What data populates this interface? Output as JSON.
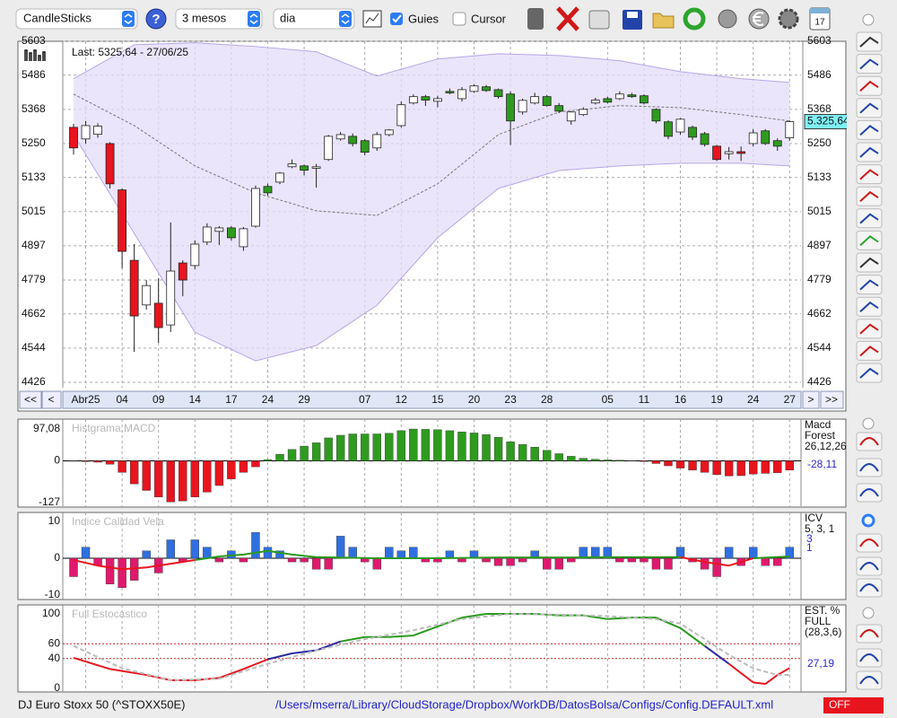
{
  "toolbar": {
    "chart_type": "CandleSticks",
    "help": "?",
    "period": "3 mesos",
    "interval": "dia",
    "guides": "Guies",
    "cursor": "Cursor",
    "calendar_day": 17
  },
  "chart_data": [
    {
      "type": "candlestick",
      "last_text": "Last: 5325,64 - 27/06/25",
      "last_tag": "5.325,64",
      "nav": {
        "first": "<<",
        "prev": "<",
        "next": ">",
        "last": ">>"
      },
      "categories": [
        null,
        "Abr25",
        null,
        null,
        "04",
        null,
        null,
        "09",
        null,
        null,
        "14",
        null,
        null,
        "17",
        null,
        null,
        "24",
        null,
        null,
        "29",
        null,
        null,
        null,
        null,
        "07",
        null,
        null,
        "12",
        null,
        null,
        "15",
        null,
        null,
        "20",
        null,
        null,
        "23",
        null,
        null,
        "28",
        null,
        null,
        null,
        null,
        "05",
        null,
        null,
        "11",
        null,
        null,
        "16",
        null,
        null,
        "19",
        null,
        null,
        "24",
        null,
        null,
        "27"
      ],
      "open": [
        5306,
        5266,
        5282,
        5250,
        5090,
        4847,
        4693,
        4699,
        4624,
        4838,
        4829,
        4910,
        4947,
        4959,
        4894,
        4965,
        5102,
        5117,
        5170,
        5173,
        5165,
        5195,
        5266,
        5275,
        5260,
        5235,
        5281,
        5312,
        5390,
        5412,
        5396,
        5430,
        5405,
        5430,
        5446,
        5436,
        5421,
        5359,
        5390,
        5412,
        5381,
        5328,
        5350,
        5390,
        5405,
        5405,
        5418,
        5415,
        5368,
        5325,
        5290,
        5306,
        5284,
        5241,
        5215,
        5222,
        5250,
        5294,
        5260,
        5270
      ],
      "high": [
        5318,
        5328,
        5320,
        5255,
        5095,
        4903,
        4779,
        4785,
        4978,
        4847,
        4916,
        4975,
        4965,
        4965,
        4962,
        5105,
        5112,
        5152,
        5195,
        5178,
        5180,
        5280,
        5290,
        5285,
        5265,
        5290,
        5300,
        5395,
        5420,
        5418,
        5415,
        5440,
        5445,
        5455,
        5452,
        5440,
        5430,
        5405,
        5425,
        5418,
        5390,
        5362,
        5375,
        5408,
        5412,
        5430,
        5425,
        5420,
        5372,
        5330,
        5338,
        5312,
        5290,
        5245,
        5238,
        5240,
        5300,
        5300,
        5268,
        5330
      ],
      "low": [
        5212,
        5250,
        5270,
        5095,
        4820,
        4531,
        4677,
        4562,
        4600,
        4723,
        4816,
        4900,
        4900,
        4915,
        4880,
        4960,
        5070,
        5110,
        5165,
        5140,
        5098,
        5190,
        5260,
        5240,
        5210,
        5225,
        5275,
        5305,
        5385,
        5380,
        5375,
        5420,
        5395,
        5425,
        5428,
        5405,
        5245,
        5350,
        5385,
        5378,
        5355,
        5315,
        5345,
        5385,
        5388,
        5400,
        5408,
        5385,
        5320,
        5265,
        5280,
        5262,
        5240,
        5190,
        5195,
        5190,
        5240,
        5245,
        5225,
        5260
      ],
      "close": [
        5235,
        5312,
        5310,
        5111,
        4878,
        4655,
        4760,
        4615,
        4810,
        4779,
        4903,
        4962,
        4959,
        4925,
        4956,
        5095,
        5080,
        5148,
        5180,
        5158,
        5170,
        5275,
        5281,
        5250,
        5220,
        5281,
        5297,
        5384,
        5412,
        5400,
        5405,
        5425,
        5436,
        5449,
        5433,
        5412,
        5328,
        5399,
        5412,
        5381,
        5362,
        5359,
        5368,
        5400,
        5393,
        5421,
        5412,
        5390,
        5328,
        5275,
        5334,
        5272,
        5247,
        5195,
        5222,
        5216,
        5287,
        5250,
        5241,
        5325.64
      ],
      "colors": [
        "#e8141e",
        "#ffffff",
        "#ffffff",
        "#e8141e",
        "#e8141e",
        "#e8141e",
        "#ffffff",
        "#e8141e",
        "#ffffff",
        "#e8141e",
        "#ffffff",
        "#ffffff",
        "#ffffff",
        "#2e9b1e",
        "#ffffff",
        "#ffffff",
        "#2e9b1e",
        "#ffffff",
        "#ffffff",
        "#2e9b1e",
        "#ffffff",
        "#ffffff",
        "#ffffff",
        "#2e9b1e",
        "#2e9b1e",
        "#ffffff",
        "#ffffff",
        "#ffffff",
        "#ffffff",
        "#2e9b1e",
        "#ffffff",
        "#2e9b1e",
        "#ffffff",
        "#ffffff",
        "#2e9b1e",
        "#2e9b1e",
        "#2e9b1e",
        "#ffffff",
        "#ffffff",
        "#2e9b1e",
        "#2e9b1e",
        "#ffffff",
        "#ffffff",
        "#ffffff",
        "#2e9b1e",
        "#ffffff",
        "#2e9b1e",
        "#2e9b1e",
        "#2e9b1e",
        "#2e9b1e",
        "#ffffff",
        "#2e9b1e",
        "#2e9b1e",
        "#e8141e",
        "#ffffff",
        "#e8141e",
        "#ffffff",
        "#2e9b1e",
        "#2e9b1e",
        "#ffffff"
      ],
      "band_fill": "#e4dcfa",
      "bands": [
        {
          "color": "#b6a6e6",
          "dashed": false,
          "x": [
            0,
            5,
            10,
            15,
            20,
            25,
            30,
            35,
            40,
            45,
            50,
            55,
            59
          ],
          "values": [
            5474,
            5591,
            5598,
            5585,
            5567,
            5483,
            5542,
            5560,
            5554,
            5536,
            5498,
            5474,
            5461
          ]
        },
        {
          "color": "#777777",
          "dashed": true,
          "x": [
            0,
            5,
            10,
            15,
            20,
            25,
            30,
            35,
            40,
            45,
            50,
            55,
            59
          ],
          "values": [
            5421,
            5312,
            5173,
            5080,
            5018,
            5002,
            5111,
            5281,
            5359,
            5381,
            5374,
            5350,
            5328
          ]
        },
        {
          "color": "#b6a6e6",
          "dashed": false,
          "x": [
            0,
            5,
            10,
            15,
            20,
            25,
            30,
            35,
            40,
            45,
            50,
            55,
            59
          ],
          "values": [
            5281,
            4940,
            4599,
            4500,
            4553,
            4692,
            4925,
            5095,
            5157,
            5173,
            5182,
            5182,
            5173
          ]
        }
      ],
      "ylim": [
        4426,
        5603
      ],
      "yticks": [
        5603,
        5486,
        5368,
        5250,
        5133,
        5015,
        4897,
        4779,
        4662,
        4544,
        4426
      ],
      "grid": true
    },
    {
      "type": "bar",
      "title": "Histgrama MACD",
      "legend_lines": [
        "Macd",
        "Forest",
        "26,12,26"
      ],
      "last_value_label": "-28,11",
      "values": [
        -1,
        -2,
        -4,
        -10,
        -35,
        -70,
        -90,
        -110,
        -125,
        -122,
        -110,
        -95,
        -75,
        -55,
        -35,
        -18,
        4,
        20,
        35,
        45,
        55,
        70,
        78,
        82,
        82,
        82,
        84,
        92,
        97,
        96,
        95,
        92,
        88,
        85,
        80,
        72,
        58,
        50,
        42,
        32,
        22,
        14,
        8,
        5,
        3,
        2,
        1,
        -2,
        -8,
        -15,
        -22,
        -28,
        -35,
        -42,
        -46,
        -45,
        -40,
        -38,
        -36,
        -28.11
      ],
      "positive_color": "#2e9b1e",
      "negative_color": "#e8141e",
      "ylim": [
        -127,
        97.08
      ],
      "yticks": [
        {
          "value": 97.08,
          "label": "97,08"
        },
        0,
        -127
      ],
      "grid_color": "#000000"
    },
    {
      "type": "bar",
      "title": "Indice Calidad Vela",
      "legend_lines": [
        "ICV",
        "5, 3, 1"
      ],
      "current_values": [
        3,
        1
      ],
      "values": [
        -5,
        3,
        -2,
        -7,
        -8,
        -6,
        2,
        -4,
        5,
        -1,
        5,
        3,
        -1,
        2,
        -1,
        7,
        3,
        2,
        -1,
        -1,
        -3,
        -3,
        6,
        3,
        -1,
        -3,
        3,
        2,
        3,
        -1,
        -1,
        2,
        -1,
        2,
        -1,
        -2,
        -2,
        -1,
        2,
        -3,
        -3,
        -1,
        3,
        3,
        3,
        -1,
        -1,
        -1,
        -3,
        -3,
        3,
        -1,
        -3,
        -5,
        3,
        -2,
        3,
        -2,
        -2,
        3
      ],
      "positive_color": "#2f6fe0",
      "negative_color": "#e0196e",
      "series": [
        {
          "colors": [
            "#e8141e",
            "#2a9a1e"
          ],
          "x": [
            0,
            2,
            4,
            6,
            8,
            10,
            12,
            14,
            16,
            18,
            20,
            25,
            30,
            35,
            40,
            45,
            50,
            52,
            54,
            56,
            59
          ],
          "values": [
            -0.5,
            -2,
            -3,
            -2.5,
            -1.5,
            -0.5,
            0.5,
            1,
            2,
            1,
            0.3,
            0,
            0,
            0.2,
            0.2,
            0.3,
            0.3,
            -1,
            -2,
            0,
            0.5
          ]
        }
      ],
      "ylim": [
        -10,
        10
      ],
      "yticks": [
        10,
        0,
        -10
      ],
      "grid_color": "#000000"
    },
    {
      "type": "line",
      "title": "Full Estocastico",
      "legend_lines": [
        "EST. %",
        "FULL",
        "(28,3,6)"
      ],
      "last_value_label": "27,19",
      "series": [
        {
          "colors": [
            "#e8141e",
            "#2a2aa0",
            "#2a9a1e"
          ],
          "dashed": false,
          "x": [
            0,
            3,
            6,
            8,
            10,
            12,
            14,
            16,
            18,
            20,
            22,
            24,
            26,
            28,
            30,
            32,
            34,
            36,
            38,
            40,
            42,
            44,
            46,
            48,
            50,
            52,
            54,
            56,
            57,
            58,
            59
          ],
          "values": [
            41,
            26,
            18,
            11,
            11,
            14,
            26,
            39,
            47,
            51,
            63,
            69,
            69,
            71,
            83,
            95,
            100,
            100,
            100,
            98,
            98,
            93,
            95,
            95,
            81,
            57,
            33,
            8,
            6,
            18,
            27.19
          ]
        },
        {
          "color": "#bbbbbb",
          "dashed": true,
          "x": [
            0,
            4,
            8,
            12,
            16,
            20,
            24,
            28,
            32,
            36,
            40,
            44,
            48,
            50,
            52,
            54,
            56,
            58,
            59
          ],
          "values": [
            57,
            27,
            11,
            13,
            33,
            51,
            66,
            78,
            93,
            100,
            99,
            97,
            93,
            87,
            66,
            45,
            27,
            18,
            18
          ]
        }
      ],
      "ylim": [
        0,
        100
      ],
      "yticks": [
        100,
        60,
        40,
        0
      ],
      "grid_color": "#d02020"
    }
  ],
  "status": {
    "symbol": "DJ Euro Stoxx 50 (^STOXX50E)",
    "config_path": "/Users/mserra/Library/CloudStorage/Dropbox/WorkDB/DatosBolsa/Configs/Config.DEFAULT.xml",
    "mode": "OFF"
  }
}
